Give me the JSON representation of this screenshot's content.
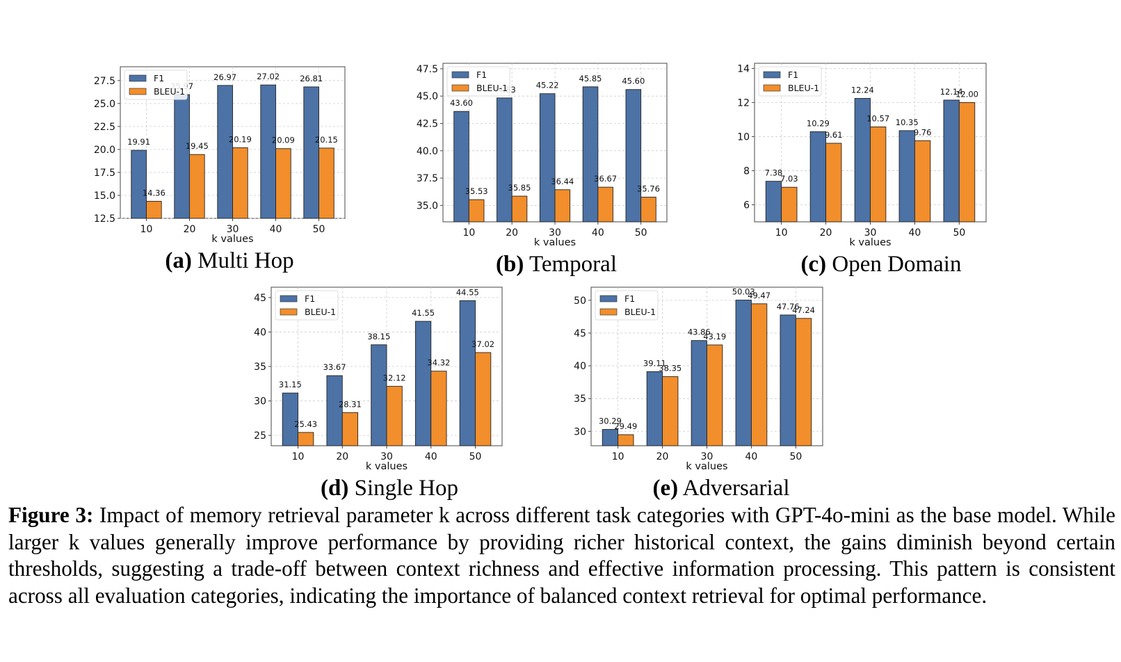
{
  "figure": {
    "label": "Figure 3:",
    "text": "Impact of memory retrieval parameter k across different task categories with GPT-4o-mini as the base model. While larger k values generally improve performance by providing richer historical context, the gains diminish beyond certain thresholds, suggesting a trade-off between context richness and effective information processing. This pattern is consistent across all evaluation categories, indicating the importance of balanced context retrieval for optimal performance."
  },
  "colors": {
    "f1": "#4c72a6",
    "bleu": "#f28e2b"
  },
  "chart_data": [
    {
      "type": "bar",
      "panel": "(a)",
      "title": "Multi Hop",
      "categories": [
        "10",
        "20",
        "30",
        "40",
        "50"
      ],
      "series": [
        {
          "name": "F1",
          "values": [
            19.91,
            25.97,
            26.97,
            27.02,
            26.81
          ]
        },
        {
          "name": "BLEU-1",
          "values": [
            14.36,
            19.45,
            20.19,
            20.09,
            20.15
          ]
        }
      ],
      "xlabel": "k values",
      "ylabel": "",
      "ylim": [
        12.5,
        29.0
      ],
      "yticks": [
        12.5,
        15.0,
        17.5,
        20.0,
        22.5,
        25.0,
        27.5
      ],
      "tick_labels": [
        "12.5",
        "15.0",
        "17.5",
        "20.0",
        "22.5",
        "25.0",
        "27.5"
      ],
      "value_labels_f1": [
        "19.91",
        "25.97",
        "26.97",
        "27.02",
        "26.81"
      ],
      "value_labels_bleu": [
        "14.36",
        "19.45",
        "20.19",
        "20.09",
        "20.15"
      ],
      "grid": true,
      "legend": "upper-left"
    },
    {
      "type": "bar",
      "panel": "(b)",
      "title": "Temporal",
      "categories": [
        "10",
        "20",
        "30",
        "40",
        "50"
      ],
      "series": [
        {
          "name": "F1",
          "values": [
            43.6,
            44.83,
            45.22,
            45.85,
            45.6
          ]
        },
        {
          "name": "BLEU-1",
          "values": [
            35.53,
            35.85,
            36.44,
            36.67,
            35.76
          ]
        }
      ],
      "xlabel": "k values",
      "ylabel": "",
      "ylim": [
        33.5,
        48.0
      ],
      "yticks": [
        35.0,
        37.5,
        40.0,
        42.5,
        45.0,
        47.5
      ],
      "tick_labels": [
        "35.0",
        "37.5",
        "40.0",
        "42.5",
        "45.0",
        "47.5"
      ],
      "value_labels_f1": [
        "43.60",
        "44.83",
        "45.22",
        "45.85",
        "45.60"
      ],
      "value_labels_bleu": [
        "35.53",
        "35.85",
        "36.44",
        "36.67",
        "35.76"
      ],
      "grid": true,
      "legend": "upper-left"
    },
    {
      "type": "bar",
      "panel": "(c)",
      "title": "Open Domain",
      "categories": [
        "10",
        "20",
        "30",
        "40",
        "50"
      ],
      "series": [
        {
          "name": "F1",
          "values": [
            7.38,
            10.29,
            12.24,
            10.35,
            12.14
          ]
        },
        {
          "name": "BLEU-1",
          "values": [
            7.03,
            9.61,
            10.57,
            9.76,
            12.0
          ]
        }
      ],
      "xlabel": "k values",
      "ylabel": "",
      "ylim": [
        5.0,
        14.3
      ],
      "yticks": [
        6,
        8,
        10,
        12,
        14
      ],
      "tick_labels": [
        "6",
        "8",
        "10",
        "12",
        "14"
      ],
      "value_labels_f1": [
        "7.38",
        "10.29",
        "12.24",
        "10.35",
        "12.14"
      ],
      "value_labels_bleu": [
        "7.03",
        "9.61",
        "10.57",
        "9.76",
        "12.00"
      ],
      "grid": true,
      "legend": "upper-left"
    },
    {
      "type": "bar",
      "panel": "(d)",
      "title": "Single Hop",
      "categories": [
        "10",
        "20",
        "30",
        "40",
        "50"
      ],
      "series": [
        {
          "name": "F1",
          "values": [
            31.15,
            33.67,
            38.15,
            41.55,
            44.55
          ]
        },
        {
          "name": "BLEU-1",
          "values": [
            25.43,
            28.31,
            32.12,
            34.32,
            37.02
          ]
        }
      ],
      "xlabel": "k values",
      "ylabel": "",
      "ylim": [
        23.5,
        46.5
      ],
      "yticks": [
        25,
        30,
        35,
        40,
        45
      ],
      "tick_labels": [
        "25",
        "30",
        "35",
        "40",
        "45"
      ],
      "value_labels_f1": [
        "31.15",
        "33.67",
        "38.15",
        "41.55",
        "44.55"
      ],
      "value_labels_bleu": [
        "25.43",
        "28.31",
        "32.12",
        "34.32",
        "37.02"
      ],
      "grid": true,
      "legend": "upper-left"
    },
    {
      "type": "bar",
      "panel": "(e)",
      "title": "Adversarial",
      "categories": [
        "10",
        "20",
        "30",
        "40",
        "50"
      ],
      "series": [
        {
          "name": "F1",
          "values": [
            30.29,
            39.11,
            43.86,
            50.03,
            47.76
          ]
        },
        {
          "name": "BLEU-1",
          "values": [
            29.49,
            38.35,
            43.19,
            49.47,
            47.24
          ]
        }
      ],
      "xlabel": "k values",
      "ylabel": "",
      "ylim": [
        27.8,
        52.0
      ],
      "yticks": [
        30,
        35,
        40,
        45,
        50
      ],
      "tick_labels": [
        "30",
        "35",
        "40",
        "45",
        "50"
      ],
      "value_labels_f1": [
        "30.29",
        "39.11",
        "43.86",
        "50.03",
        "47.76"
      ],
      "value_labels_bleu": [
        "29.49",
        "38.35",
        "43.19",
        "49.47",
        "47.24"
      ],
      "grid": true,
      "legend": "upper-left"
    }
  ]
}
